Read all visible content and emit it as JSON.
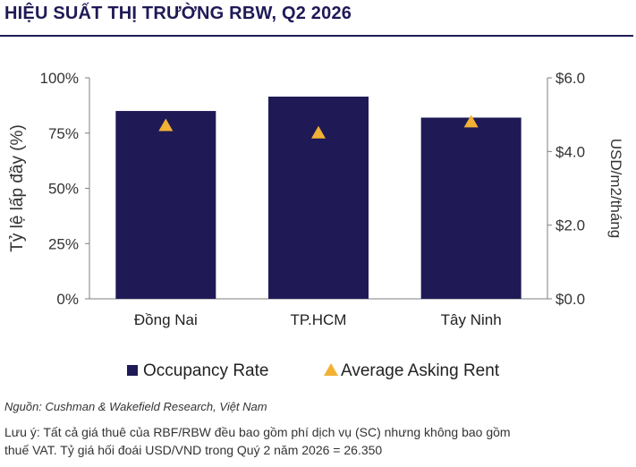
{
  "title": "HIỆU SUẤT THỊ TRƯỜNG RBW, Q2 2026",
  "source": "Nguồn: Cushman & Wakefield Research, Việt Nam",
  "note_line1": "Lưu ý: Tất cả giá thuê của RBF/RBW đều bao gồm phí dịch vụ (SC) nhưng không bao gồm",
  "note_line2": "thuế VAT. Tỷ giá hối đoái USD/VND trong Quý 2 năm 2026 = 26.350",
  "colors": {
    "bar": "#1f1a56",
    "marker": "#f2b134",
    "axis": "#7f7f7f",
    "title": "#1f1a56"
  },
  "chart_data": {
    "type": "bar",
    "categories": [
      "Đồng Nai",
      "TP.HCM",
      "Tây Ninh"
    ],
    "series": [
      {
        "name": "Occupancy Rate",
        "axis": "left",
        "kind": "bar",
        "values": [
          85,
          91.5,
          82
        ]
      },
      {
        "name": "Average Asking Rent",
        "axis": "right",
        "kind": "marker",
        "marker": "triangle",
        "values": [
          4.7,
          4.5,
          4.8
        ]
      }
    ],
    "ylabel": "Tỷ lệ lấp đầy (%)",
    "ylabel_right": "USD/m2/tháng",
    "ylim": [
      0,
      100
    ],
    "ylim_right": [
      0,
      6
    ],
    "y_ticks": [
      "0%",
      "25%",
      "50%",
      "75%",
      "100%"
    ],
    "y_ticks_right": [
      "$0.0",
      "$2.0",
      "$4.0",
      "$6.0"
    ],
    "legend_position": "bottom",
    "grid": false
  }
}
